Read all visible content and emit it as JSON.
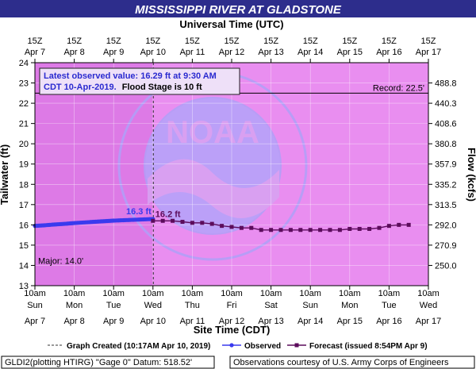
{
  "title": "MISSISSIPPI RIVER AT GLADSTONE",
  "top_axis_title": "Universal Time (UTC)",
  "bottom_axis_title": "Site Time (CDT)",
  "left_axis_title": "Tailwater (ft)",
  "right_axis_title": "Flow (kcfs)",
  "info_box": {
    "line1": "Latest observed value: 16.29 ft at 9:30 AM",
    "line2_date": "CDT 10-Apr-2019.",
    "line2_flood": "Flood Stage is 10 ft"
  },
  "record_label": "Record: 22.5'",
  "major_label": "Major: 14.0'",
  "observed_label": "16.3 ft",
  "forecast_label": "16.2 ft",
  "watermark": {
    "logo_text": "NOAA",
    "ring_top": "NATIONAL OCEANIC AND ATMOSPHERIC ADMINISTRATION",
    "ring_bottom": "U.S. DEPARTMENT OF COMMERCE"
  },
  "legend": {
    "created": "Graph Created (10:17AM Apr 10, 2019)",
    "observed": "Observed",
    "forecast": "Forecast (issued 8:54PM Apr 9)"
  },
  "footer": {
    "left": "GLDI2(plotting HTIRG) \"Gage 0\" Datum: 518.52'",
    "right": "Observations courtesy of U.S. Army Corps of Engineers"
  },
  "colors": {
    "plot_bg": "#e98ef0",
    "past_bg": "#dd7ae6",
    "observed": "#3a3aee",
    "forecast": "#5c0c5c",
    "title_bg": "#2d2d8c",
    "watermark": "#b0a0f8"
  },
  "chart_data": {
    "type": "line",
    "x_unit": "days since Apr 7 10am CDT",
    "bottom_ticks": [
      {
        "time": "10am",
        "day": "Sun",
        "date": "Apr 7"
      },
      {
        "time": "10am",
        "day": "Mon",
        "date": "Apr 8"
      },
      {
        "time": "10am",
        "day": "Tue",
        "date": "Apr 9"
      },
      {
        "time": "10am",
        "day": "Wed",
        "date": "Apr 10"
      },
      {
        "time": "10am",
        "day": "Thu",
        "date": "Apr 11"
      },
      {
        "time": "10am",
        "day": "Fri",
        "date": "Apr 12"
      },
      {
        "time": "10am",
        "day": "Sat",
        "date": "Apr 13"
      },
      {
        "time": "10am",
        "day": "Sun",
        "date": "Apr 14"
      },
      {
        "time": "10am",
        "day": "Mon",
        "date": "Apr 15"
      },
      {
        "time": "10am",
        "day": "Tue",
        "date": "Apr 16"
      },
      {
        "time": "10am",
        "day": "Wed",
        "date": "Apr 17"
      }
    ],
    "top_ticks": [
      {
        "time": "15Z",
        "date": "Apr 7"
      },
      {
        "time": "15Z",
        "date": "Apr 8"
      },
      {
        "time": "15Z",
        "date": "Apr 9"
      },
      {
        "time": "15Z",
        "date": "Apr 10"
      },
      {
        "time": "15Z",
        "date": "Apr 11"
      },
      {
        "time": "15Z",
        "date": "Apr 12"
      },
      {
        "time": "15Z",
        "date": "Apr 13"
      },
      {
        "time": "15Z",
        "date": "Apr 14"
      },
      {
        "time": "15Z",
        "date": "Apr 15"
      },
      {
        "time": "15Z",
        "date": "Apr 16"
      },
      {
        "time": "15Z",
        "date": "Apr 17"
      }
    ],
    "y_left": {
      "min": 13,
      "max": 24,
      "ticks": [
        13,
        14,
        15,
        16,
        17,
        18,
        19,
        20,
        21,
        22,
        23,
        24
      ]
    },
    "y_right_ticks": [
      {
        "stage": 14,
        "label": "250.0"
      },
      {
        "stage": 15,
        "label": "270.9"
      },
      {
        "stage": 16,
        "label": "292.0"
      },
      {
        "stage": 17,
        "label": "313.5"
      },
      {
        "stage": 18,
        "label": "335.2"
      },
      {
        "stage": 19,
        "label": "357.9"
      },
      {
        "stage": 20,
        "label": "380.8"
      },
      {
        "stage": 21,
        "label": "408.6"
      },
      {
        "stage": 22,
        "label": "440.3"
      },
      {
        "stage": 23,
        "label": "488.8"
      }
    ],
    "record_stage": 22.5,
    "major_stage": 14.0,
    "created_x": 3.01,
    "series": [
      {
        "name": "Observed",
        "x": [
          0.0,
          0.25,
          0.5,
          0.75,
          1.0,
          1.25,
          1.5,
          1.75,
          2.0,
          2.25,
          2.5,
          2.75,
          3.0
        ],
        "y": [
          15.95,
          15.98,
          16.02,
          16.05,
          16.09,
          16.12,
          16.15,
          16.18,
          16.21,
          16.23,
          16.25,
          16.27,
          16.29
        ]
      },
      {
        "name": "Forecast",
        "x": [
          3.0,
          3.25,
          3.5,
          3.75,
          4.0,
          4.25,
          4.5,
          4.75,
          5.0,
          5.25,
          5.5,
          5.75,
          6.0,
          6.25,
          6.5,
          6.75,
          7.0,
          7.25,
          7.5,
          7.75,
          8.0,
          8.25,
          8.5,
          8.75,
          9.0,
          9.25,
          9.5
        ],
        "y": [
          16.2,
          16.2,
          16.2,
          16.15,
          16.1,
          16.1,
          16.05,
          15.95,
          15.9,
          15.85,
          15.85,
          15.75,
          15.75,
          15.75,
          15.75,
          15.75,
          15.75,
          15.75,
          15.75,
          15.75,
          15.8,
          15.8,
          15.8,
          15.85,
          15.95,
          16.0,
          16.0
        ]
      }
    ]
  }
}
